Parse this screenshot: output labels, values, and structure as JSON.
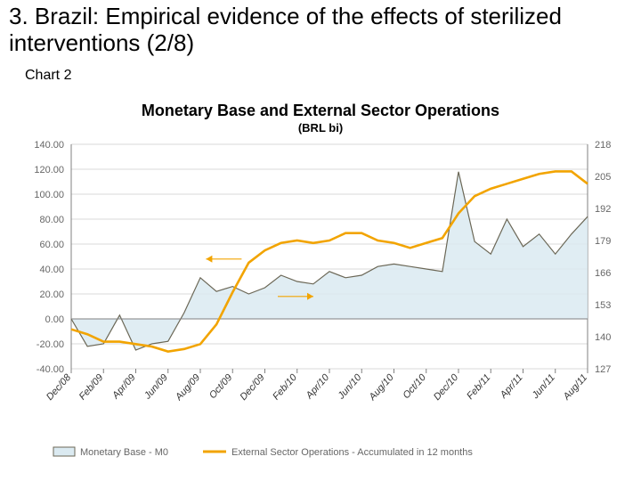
{
  "slide": {
    "title": "3. Brazil: Empirical evidence of the effects of sterilized interventions (2/8)",
    "chart_label": "Chart 2"
  },
  "chart": {
    "type": "dual-axis-line-area",
    "title": "Monetary Base and External Sector Operations",
    "subtitle": "(BRL bi)",
    "title_fontsize": 18,
    "subtitle_fontsize": 13,
    "title_color": "#000000",
    "background_color": "#ffffff",
    "grid_color": "#d9d9d9",
    "axis_color": "#808080",
    "tick_font_size": 11,
    "categories": [
      "Dec/08",
      "Feb/09",
      "Apr/09",
      "Jun/09",
      "Aug/09",
      "Oct/09",
      "Dec/09",
      "Feb/10",
      "Apr/10",
      "Jun/10",
      "Aug/10",
      "Oct/10",
      "Dec/10",
      "Feb/11",
      "Apr/11",
      "Jun/11",
      "Aug/11"
    ],
    "left_axis": {
      "ticks": [
        -40,
        -20,
        0,
        20,
        40,
        60,
        80,
        100,
        120,
        140
      ],
      "min": -40,
      "max": 140,
      "label_format": "0.00"
    },
    "right_axis": {
      "ticks": [
        127,
        140,
        153,
        166,
        179,
        192,
        205,
        218
      ],
      "min": 127,
      "max": 218
    },
    "series": [
      {
        "key": "monetary_base",
        "name": "Monetary Base - M0",
        "axis": "left",
        "style": "area",
        "line_color": "#6b6756",
        "fill_color": "#dbeaf1",
        "fill_opacity": 0.85,
        "line_width": 1.2,
        "values": [
          0,
          -22,
          -20,
          3,
          -25,
          -20,
          -18,
          5,
          33,
          22,
          26,
          20,
          25,
          35,
          30,
          28,
          38,
          33,
          35,
          42,
          44,
          42,
          40,
          38,
          118,
          62,
          52,
          80,
          58,
          68,
          52,
          68,
          82
        ]
      },
      {
        "key": "external_ops",
        "name": "External Sector Operations - Accumulated in 12 months",
        "axis": "right",
        "style": "line",
        "line_color": "#f2a400",
        "line_width": 2.6,
        "values": [
          143,
          141,
          138,
          138,
          137,
          136,
          134,
          135,
          137,
          145,
          158,
          170,
          175,
          178,
          179,
          178,
          179,
          182,
          182,
          179,
          178,
          176,
          178,
          180,
          190,
          197,
          200,
          202,
          204,
          206,
          207,
          207,
          202
        ]
      }
    ],
    "legend": {
      "items": [
        {
          "swatch_style": "area",
          "fill": "#dbeaf1",
          "stroke": "#6b6756",
          "label": "Monetary Base - M0"
        },
        {
          "swatch_style": "line",
          "stroke": "#f2a400",
          "label": "External Sector Operations - Accumulated in 12 months"
        }
      ],
      "font_size": 11,
      "text_color": "#666666"
    },
    "arrows": {
      "color": "#f2a400",
      "left_arrow_y_left_value": 48,
      "right_arrow_y_left_value": 18
    }
  }
}
